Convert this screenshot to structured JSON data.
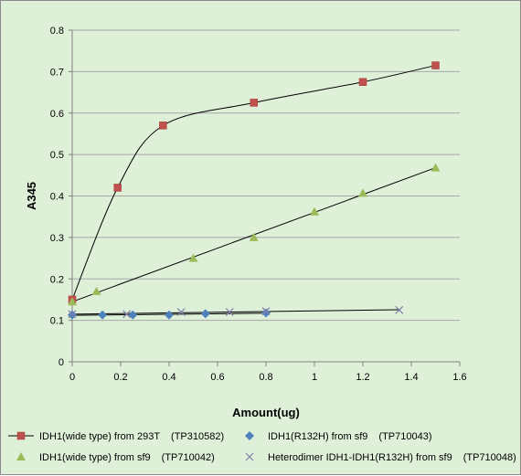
{
  "chart_data": {
    "type": "scatter",
    "xlabel": "Amount(ug)",
    "ylabel": "A345",
    "xlim": [
      0,
      1.6
    ],
    "ylim": [
      0,
      0.8
    ],
    "xticks": [
      "0",
      "0.2",
      "0.4",
      "0.6",
      "0.8",
      "1",
      "1.2",
      "1.4",
      "1.6"
    ],
    "yticks": [
      "0",
      "0.1",
      "0.2",
      "0.3",
      "0.4",
      "0.5",
      "0.6",
      "0.7",
      "0.8"
    ],
    "grid": true,
    "legend_position": "bottom",
    "series": [
      {
        "name": "IDH1(wide type) from 293T",
        "catalog": "(TP310582)",
        "marker": "square",
        "color": "#c0504d",
        "trend": "smooth",
        "points": [
          [
            0,
            0.15
          ],
          [
            0.1875,
            0.42
          ],
          [
            0.375,
            0.57
          ],
          [
            0.75,
            0.625
          ],
          [
            1.2,
            0.675
          ],
          [
            1.5,
            0.715
          ]
        ]
      },
      {
        "name": "IDH1(R132H) from sf9",
        "catalog": "(TP710043)",
        "marker": "diamond",
        "color": "#4f81bd",
        "trend": "linear",
        "points": [
          [
            0,
            0.113
          ],
          [
            0.125,
            0.113
          ],
          [
            0.25,
            0.113
          ],
          [
            0.4,
            0.113
          ],
          [
            0.55,
            0.116
          ],
          [
            0.8,
            0.118
          ]
        ]
      },
      {
        "name": "IDH1(wide type) from sf9",
        "catalog": "(TP710042)",
        "marker": "triangle",
        "color": "#9bbb59",
        "trend": "linear",
        "points": [
          [
            0,
            0.145
          ],
          [
            0.1,
            0.17
          ],
          [
            0.5,
            0.25
          ],
          [
            0.75,
            0.3
          ],
          [
            1.0,
            0.362
          ],
          [
            1.2,
            0.407
          ],
          [
            1.5,
            0.468
          ]
        ]
      },
      {
        "name": "Heterodimer IDH1-IDH1(R132H) from sf9",
        "catalog": "(TP710048)",
        "marker": "x",
        "color": "#7f7fa8",
        "trend": "linear",
        "points": [
          [
            0,
            0.115
          ],
          [
            0.225,
            0.115
          ],
          [
            0.45,
            0.12
          ],
          [
            0.65,
            0.12
          ],
          [
            0.8,
            0.122
          ],
          [
            1.35,
            0.125
          ]
        ]
      }
    ]
  }
}
